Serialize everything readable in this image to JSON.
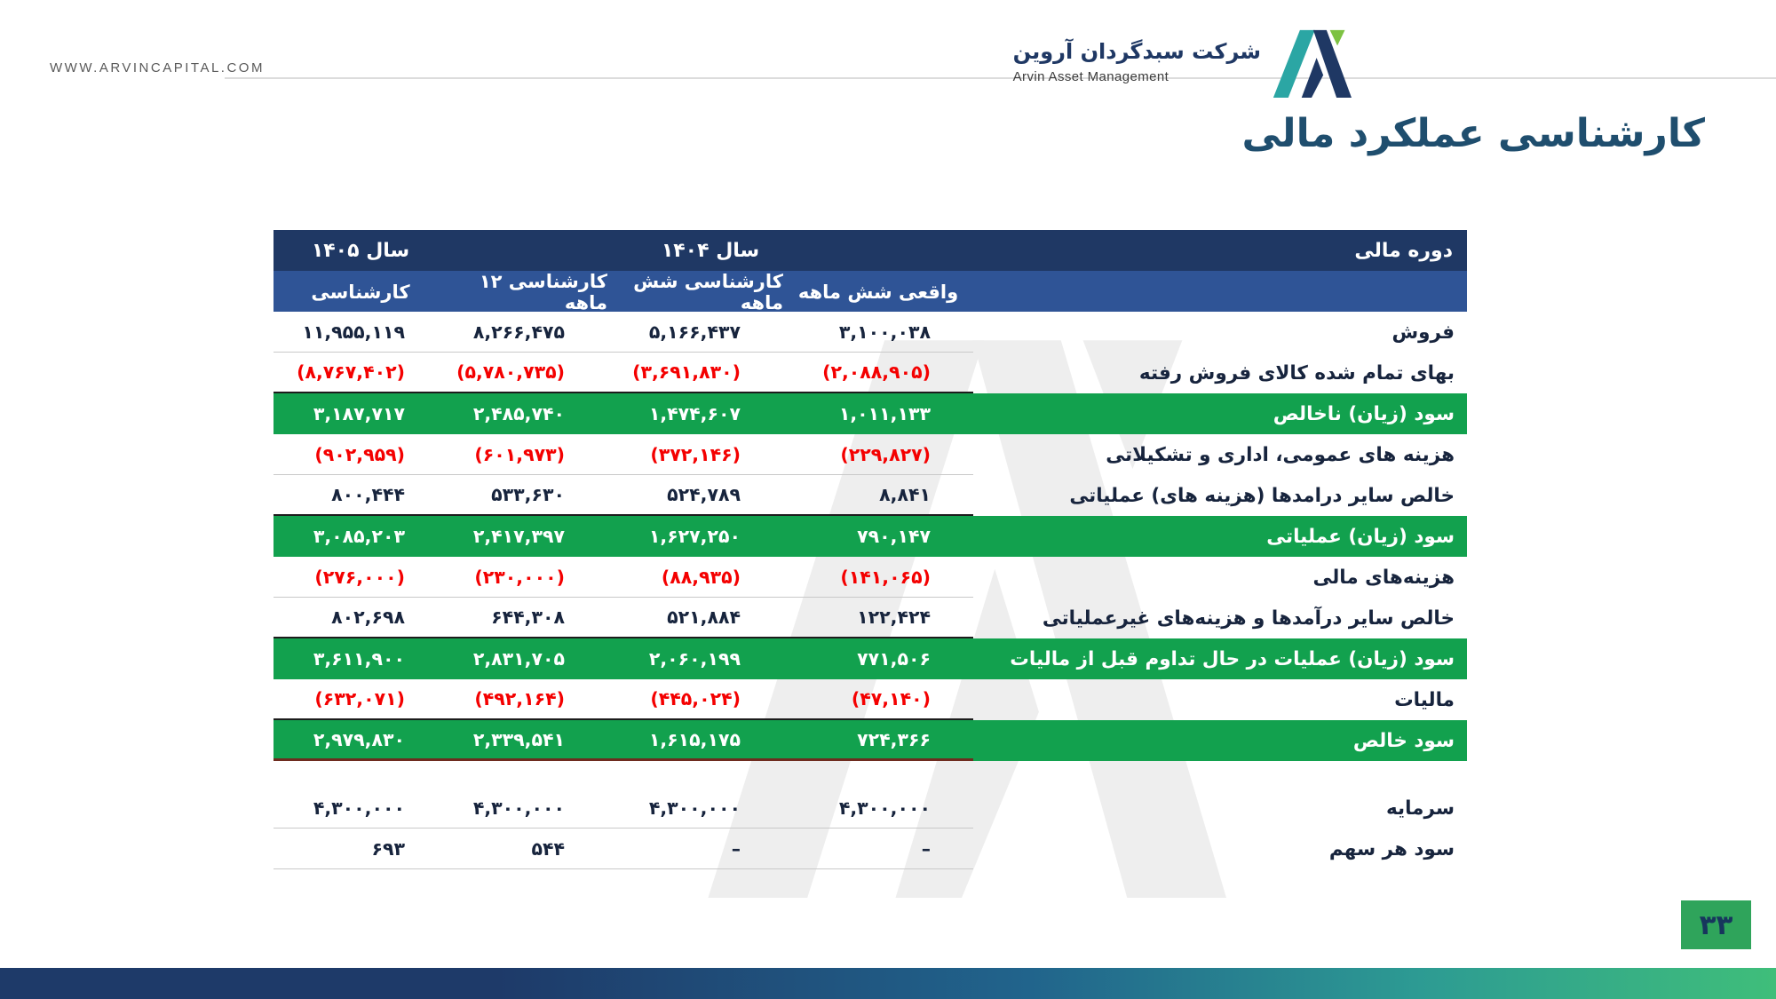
{
  "header": {
    "website": "WWW.ARVINCAPITAL.COM",
    "company_fa": "شرکت سبدگردان آروین",
    "company_en": "Arvin Asset Management"
  },
  "title": "کارشناسی عملکرد مالی",
  "footer": {
    "page_number": "۳۳"
  },
  "colors": {
    "header_navy": "#1F3864",
    "header_blue": "#2F5496",
    "row_green": "#12A14E",
    "negative_red": "#F40000",
    "title": "#1F4E6E",
    "logo_teal": "#2BA6A4",
    "logo_navy": "#1F3864",
    "logo_green": "#7DC242",
    "badge_green": "#2FA45B"
  },
  "table": {
    "period_label": "دوره مالی",
    "year_1404": "سال ۱۴۰۴",
    "year_1405": "سال ۱۴۰۵",
    "col_headers": [
      "واقعی شش ماهه",
      "کارشناسی شش ماهه",
      "کارشناسی ۱۲ ماهه",
      "کارشناسی"
    ],
    "rows": [
      {
        "label": "فروش",
        "type": "normal",
        "rule": "light",
        "values": [
          "۳,۱۰۰,۰۳۸",
          "۵,۱۶۶,۴۳۷",
          "۸,۲۶۶,۴۷۵",
          "۱۱,۹۵۵,۱۱۹"
        ]
      },
      {
        "label": "بهای تمام شده کالای فروش رفته",
        "type": "negative",
        "rule": "strong",
        "values": [
          "(۲,۰۸۸,۹۰۵)",
          "(۳,۶۹۱,۸۳۰)",
          "(۵,۷۸۰,۷۳۵)",
          "(۸,۷۶۷,۴۰۲)"
        ]
      },
      {
        "label": "سود (زیان) ناخالص",
        "type": "total",
        "rule": "none",
        "values": [
          "۱,۰۱۱,۱۳۳",
          "۱,۴۷۴,۶۰۷",
          "۲,۴۸۵,۷۴۰",
          "۳,۱۸۷,۷۱۷"
        ]
      },
      {
        "label": "هزینه های عمومی، اداری و تشکیلاتی",
        "type": "negative",
        "rule": "light",
        "values": [
          "(۲۲۹,۸۲۷)",
          "(۳۷۲,۱۴۶)",
          "(۶۰۱,۹۷۳)",
          "(۹۰۲,۹۵۹)"
        ]
      },
      {
        "label": "خالص سایر درامدها (هزینه های) عملیاتی",
        "type": "normal",
        "rule": "strong",
        "values": [
          "۸,۸۴۱",
          "۵۲۴,۷۸۹",
          "۵۳۳,۶۳۰",
          "۸۰۰,۴۴۴"
        ]
      },
      {
        "label": "سود (زیان) عملیاتی",
        "type": "total",
        "rule": "none",
        "values": [
          "۷۹۰,۱۴۷",
          "۱,۶۲۷,۲۵۰",
          "۲,۴۱۷,۳۹۷",
          "۳,۰۸۵,۲۰۳"
        ]
      },
      {
        "label": "هزینه‌های مالی",
        "type": "negative",
        "rule": "light",
        "values": [
          "(۱۴۱,۰۶۵)",
          "(۸۸,۹۳۵)",
          "(۲۳۰,۰۰۰)",
          "(۲۷۶,۰۰۰)"
        ]
      },
      {
        "label": "خالص سایر درآمدها و هزینه‌های غیرعملیاتی",
        "type": "normal",
        "rule": "strong",
        "values": [
          "۱۲۲,۴۲۴",
          "۵۲۱,۸۸۴",
          "۶۴۴,۳۰۸",
          "۸۰۲,۶۹۸"
        ]
      },
      {
        "label": "سود (زیان) عملیات در حال تداوم قبل از مالیات",
        "type": "total",
        "rule": "none",
        "values": [
          "۷۷۱,۵۰۶",
          "۲,۰۶۰,۱۹۹",
          "۲,۸۳۱,۷۰۵",
          "۳,۶۱۱,۹۰۰"
        ]
      },
      {
        "label": "مالیات",
        "type": "negative",
        "rule": "strong",
        "values": [
          "(۴۷,۱۴۰)",
          "(۴۴۵,۰۲۴)",
          "(۴۹۲,۱۶۴)",
          "(۶۳۲,۰۷۱)"
        ]
      },
      {
        "label": "سود خالص",
        "type": "total",
        "rule": "final",
        "values": [
          "۷۲۴,۳۶۶",
          "۱,۶۱۵,۱۷۵",
          "۲,۳۳۹,۵۴۱",
          "۲,۹۷۹,۸۳۰"
        ]
      },
      {
        "type": "spacer"
      },
      {
        "label": "سرمایه",
        "type": "normal",
        "rule": "light",
        "values": [
          "۴,۳۰۰,۰۰۰",
          "۴,۳۰۰,۰۰۰",
          "۴,۳۰۰,۰۰۰",
          "۴,۳۰۰,۰۰۰"
        ]
      },
      {
        "label": "سود هر سهم",
        "type": "normal",
        "rule": "light",
        "values": [
          "–",
          "–",
          "۵۴۴",
          "۶۹۳"
        ]
      }
    ]
  }
}
